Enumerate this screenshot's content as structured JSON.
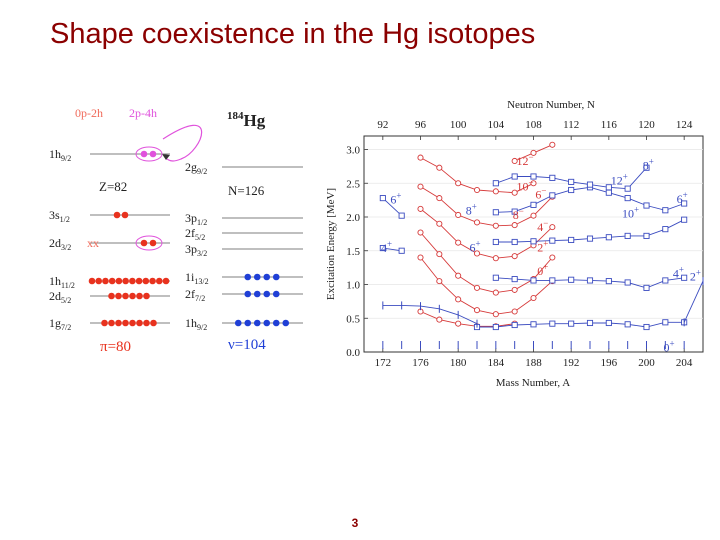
{
  "title": "Shape coexistence in the Hg isotopes",
  "page_number": "3",
  "scheme": {
    "label_0p2h": "0p-2h",
    "label_2p4h": "2p-4h",
    "nucleus_mass": "184",
    "nucleus_symbol": "Hg",
    "z_gap": "Z=82",
    "n_gap": "N=126",
    "proton_count": "π=80",
    "neutron_count": "ν=104",
    "colors": {
      "proton": "#e8321e",
      "neutron": "#1f3fd6",
      "intruder": "#e052dc",
      "excite_label": "#f06a5a"
    },
    "proton_levels": [
      {
        "name": "1h",
        "sub": "9/2",
        "particles": 2,
        "style": "intruder-pair"
      },
      {
        "name": "3s",
        "sub": "1/2",
        "particles": 2,
        "style": "filled"
      },
      {
        "name": "2d",
        "sub": "3/2",
        "particles": 2,
        "style": "holes-and-pair",
        "holes": "xx"
      },
      {
        "name": "1h",
        "sub": "11/2",
        "particles": 12,
        "style": "filled"
      },
      {
        "name": "2d",
        "sub": "5/2",
        "particles": 6,
        "style": "filled"
      },
      {
        "name": "1g",
        "sub": "7/2",
        "particles": 8,
        "style": "filled"
      }
    ],
    "neutron_levels": [
      {
        "name": "2g",
        "sub": "9/2",
        "particles": 0
      },
      {
        "name": "3p",
        "sub": "1/2",
        "particles": 0
      },
      {
        "name": "2f",
        "sub": "5/2",
        "particles": 0
      },
      {
        "name": "3p",
        "sub": "3/2",
        "particles": 0
      },
      {
        "name": "1i",
        "sub": "13/2",
        "particles": 4
      },
      {
        "name": "2f",
        "sub": "7/2",
        "particles": 4
      },
      {
        "name": "1h",
        "sub": "9/2",
        "particles": 6
      }
    ]
  },
  "chart_data": {
    "type": "scatter",
    "xlabel": "Mass Number, A",
    "x2label": "Neutron Number, N",
    "ylabel": "Excitation Energy [MeV]",
    "xlim": [
      170,
      206
    ],
    "ylim": [
      0,
      3.2
    ],
    "xticks": [
      "172",
      "176",
      "180",
      "184",
      "188",
      "192",
      "196",
      "200",
      "204"
    ],
    "x2ticks": [
      "92",
      "96",
      "100",
      "104",
      "108",
      "112",
      "116",
      "120",
      "124"
    ],
    "yticks": [
      "0.0",
      "0.5",
      "1.0",
      "1.5",
      "2.0",
      "2.5",
      "3.0"
    ],
    "series": [
      {
        "group": "prolate",
        "color": "#d63a3a",
        "marker": "circle",
        "x": [
          176,
          178,
          180,
          182,
          184,
          186
        ],
        "y": [
          0.6,
          0.48,
          0.42,
          0.38,
          0.38,
          0.42
        ]
      },
      {
        "group": "prolate",
        "color": "#d63a3a",
        "marker": "circle",
        "x": [
          176,
          178,
          180,
          182,
          184,
          186,
          188,
          190
        ],
        "y": [
          1.4,
          1.05,
          0.78,
          0.62,
          0.56,
          0.6,
          0.8,
          1.05
        ]
      },
      {
        "group": "prolate",
        "color": "#d63a3a",
        "marker": "circle",
        "x": [
          176,
          178,
          180,
          182,
          184,
          186,
          188,
          190
        ],
        "y": [
          1.77,
          1.45,
          1.13,
          0.95,
          0.88,
          0.92,
          1.08,
          1.4
        ]
      },
      {
        "group": "prolate",
        "color": "#d63a3a",
        "marker": "circle",
        "x": [
          176,
          178,
          180,
          182,
          184,
          186,
          188,
          190
        ],
        "y": [
          2.12,
          1.9,
          1.62,
          1.46,
          1.39,
          1.42,
          1.58,
          1.85
        ]
      },
      {
        "group": "prolate",
        "color": "#d63a3a",
        "marker": "circle",
        "x": [
          176,
          178,
          180,
          182,
          184,
          186,
          188,
          190
        ],
        "y": [
          2.45,
          2.28,
          2.03,
          1.92,
          1.87,
          1.88,
          2.02,
          2.3
        ]
      },
      {
        "group": "prolate",
        "color": "#d63a3a",
        "marker": "circle",
        "x": [
          176,
          178,
          180,
          182,
          184,
          186,
          188
        ],
        "y": [
          2.88,
          2.73,
          2.5,
          2.4,
          2.38,
          2.36,
          2.5
        ]
      },
      {
        "group": "prolate",
        "color": "#d63a3a",
        "marker": "circle",
        "x": [
          186,
          188,
          190
        ],
        "y": [
          2.83,
          2.95,
          3.07
        ]
      },
      {
        "group": "oblate",
        "color": "#3b4cc0",
        "marker": "square",
        "x": [
          182,
          184,
          186,
          188,
          190,
          192,
          194,
          196,
          198,
          200,
          202,
          204
        ],
        "y": [
          0.37,
          0.37,
          0.4,
          0.41,
          0.42,
          0.42,
          0.43,
          0.43,
          0.41,
          0.37,
          0.44,
          0.44
        ]
      },
      {
        "group": "oblate",
        "color": "#3b4cc0",
        "marker": "square",
        "x": [
          184,
          186,
          188,
          190,
          192,
          194,
          196,
          198,
          200,
          202,
          204
        ],
        "y": [
          1.1,
          1.08,
          1.06,
          1.06,
          1.07,
          1.06,
          1.05,
          1.03,
          0.95,
          1.06,
          1.1
        ]
      },
      {
        "group": "oblate",
        "color": "#3b4cc0",
        "marker": "square",
        "x": [
          184,
          186,
          188,
          190,
          192,
          194,
          196,
          198,
          200,
          202,
          204
        ],
        "y": [
          1.63,
          1.63,
          1.64,
          1.65,
          1.66,
          1.68,
          1.7,
          1.72,
          1.72,
          1.82,
          1.96
        ]
      },
      {
        "group": "oblate",
        "color": "#3b4cc0",
        "marker": "square",
        "x": [
          184,
          186,
          188,
          190,
          192,
          194,
          196,
          198,
          200,
          202,
          204
        ],
        "y": [
          2.07,
          2.08,
          2.18,
          2.32,
          2.4,
          2.44,
          2.36,
          2.28,
          2.17,
          2.1,
          2.2
        ]
      },
      {
        "group": "oblate",
        "color": "#3b4cc0",
        "marker": "square",
        "x": [
          184,
          186,
          188,
          190,
          192,
          194,
          196,
          198,
          200
        ],
        "y": [
          2.5,
          2.6,
          2.6,
          2.58,
          2.52,
          2.48,
          2.44,
          2.42,
          2.73
        ]
      },
      {
        "group": "oblate",
        "color": "#3b4cc0",
        "marker": "square",
        "x": [
          172,
          174
        ],
        "y": [
          2.28,
          2.02
        ]
      },
      {
        "group": "oblate",
        "color": "#3b4cc0",
        "marker": "square",
        "x": [
          172,
          174
        ],
        "y": [
          1.54,
          1.5
        ]
      },
      {
        "group": "gs",
        "color": "#3b4cc0",
        "marker": "tick",
        "x": [
          172,
          174,
          176,
          178,
          180,
          182
        ],
        "y": [
          0.69,
          0.69,
          0.68,
          0.64,
          0.55,
          0.42
        ]
      },
      {
        "group": "gs",
        "color": "#3b4cc0",
        "marker": "tick",
        "x": [
          204,
          206
        ],
        "y": [
          0.44,
          1.05
        ]
      }
    ],
    "ground_state_x": [
      172,
      174,
      176,
      178,
      180,
      182,
      184,
      186,
      188,
      190,
      192,
      194,
      196,
      198,
      200,
      202,
      204
    ],
    "annotations": [
      {
        "text": "12",
        "sup": "−",
        "x": 186.2,
        "y": 2.83,
        "color": "#d63a3a"
      },
      {
        "text": "10",
        "sup": "−",
        "x": 186.2,
        "y": 2.45,
        "color": "#d63a3a"
      },
      {
        "text": "6",
        "sup": "−",
        "x": 188.2,
        "y": 2.33,
        "color": "#d63a3a"
      },
      {
        "text": "8",
        "sup": "+",
        "x": 180.8,
        "y": 2.1,
        "color": "#3b4cc0"
      },
      {
        "text": "8",
        "sup": "−",
        "x": 185.8,
        "y": 2.03,
        "color": "#d63a3a"
      },
      {
        "text": "4",
        "sup": "−",
        "x": 188.4,
        "y": 1.85,
        "color": "#d63a3a"
      },
      {
        "text": "6",
        "sup": "+",
        "x": 181.2,
        "y": 1.55,
        "color": "#3b4cc0"
      },
      {
        "text": "2",
        "sup": "+",
        "x": 188.4,
        "y": 1.55,
        "color": "#d63a3a"
      },
      {
        "text": "0",
        "sup": "+",
        "x": 188.4,
        "y": 1.2,
        "color": "#d63a3a"
      },
      {
        "text": "6",
        "sup": "+",
        "x": 172.8,
        "y": 2.26,
        "color": "#3b4cc0"
      },
      {
        "text": "4",
        "sup": "+",
        "x": 171.8,
        "y": 1.54,
        "color": "#3b4cc0"
      },
      {
        "text": "8",
        "sup": "+",
        "x": 199.6,
        "y": 2.76,
        "color": "#3b4cc0"
      },
      {
        "text": "12",
        "sup": "+",
        "x": 196.2,
        "y": 2.54,
        "color": "#3b4cc0"
      },
      {
        "text": "6",
        "sup": "+",
        "x": 203.2,
        "y": 2.27,
        "color": "#3b4cc0"
      },
      {
        "text": "10",
        "sup": "+",
        "x": 197.4,
        "y": 2.05,
        "color": "#3b4cc0"
      },
      {
        "text": "4",
        "sup": "+",
        "x": 202.8,
        "y": 1.16,
        "color": "#3b4cc0"
      },
      {
        "text": "2",
        "sup": "+",
        "x": 204.6,
        "y": 1.12,
        "color": "#3b4cc0"
      },
      {
        "text": "0",
        "sup": "+",
        "x": 201.8,
        "y": 0.07,
        "color": "#3b4cc0"
      }
    ]
  }
}
